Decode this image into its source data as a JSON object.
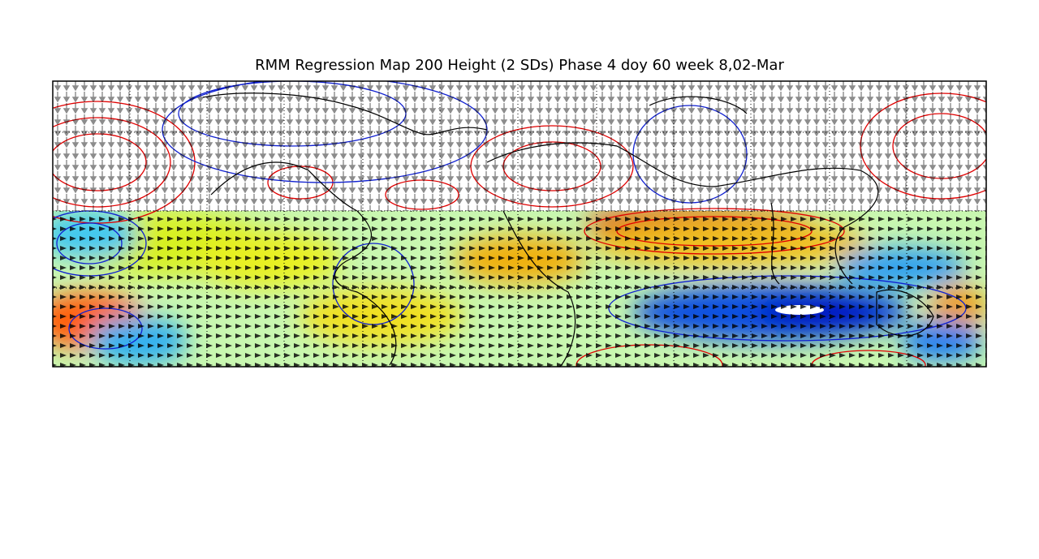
{
  "map": {
    "title": "RMM Regression Map 200 Height (2 SDs) Phase 4 doy 60 week 8,02-Mar"
  }
}
